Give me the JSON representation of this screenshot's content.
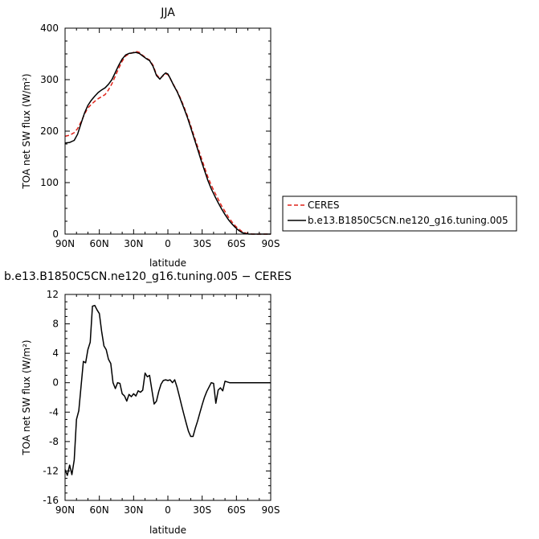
{
  "chart_data": [
    {
      "type": "line",
      "title": "JJA",
      "xlabel": "latitude",
      "ylabel": "TOA net SW flux (W/m²)",
      "xlim": [
        -90,
        90
      ],
      "ylim": [
        0,
        400
      ],
      "x_ticks": [
        {
          "value": -90,
          "label": "90N"
        },
        {
          "value": -60,
          "label": "60N"
        },
        {
          "value": -30,
          "label": "30N"
        },
        {
          "value": 0,
          "label": "0"
        },
        {
          "value": 30,
          "label": "30S"
        },
        {
          "value": 60,
          "label": "60S"
        },
        {
          "value": 90,
          "label": "90S"
        }
      ],
      "y_ticks": [
        0,
        100,
        200,
        300,
        400
      ],
      "legend_position": "right",
      "series": [
        {
          "name": "CERES",
          "color": "#e0241b",
          "dash": "dashed",
          "x": [
            -90,
            -86,
            -82,
            -79,
            -76,
            -73,
            -70,
            -67,
            -64,
            -61,
            -58,
            -55,
            -52,
            -49,
            -46,
            -43,
            -40,
            -37,
            -34,
            -31,
            -28,
            -25,
            -22,
            -19,
            -16,
            -13,
            -10,
            -7,
            -4,
            -2,
            0,
            2,
            5,
            8,
            11,
            14,
            17,
            20,
            23,
            26,
            29,
            32,
            35,
            38,
            41,
            44,
            47,
            50,
            53,
            56,
            59,
            62,
            65,
            68,
            71,
            74,
            77,
            80,
            84,
            88,
            90
          ],
          "y": [
            190,
            192,
            197,
            205,
            218,
            233,
            245,
            252,
            258,
            263,
            267,
            271,
            280,
            292,
            307,
            322,
            336,
            346,
            350,
            352,
            355,
            353,
            347,
            342,
            338,
            328,
            310,
            302,
            308,
            311,
            310,
            302,
            290,
            278,
            264,
            248,
            230,
            211,
            190,
            170,
            150,
            130,
            111,
            95,
            81,
            68,
            55,
            44,
            33,
            24,
            16,
            10,
            5,
            2,
            1,
            0,
            0,
            0,
            0,
            0,
            0
          ]
        },
        {
          "name": "b.e13.B1850C5CN.ne120_g16.tuning.005",
          "color": "#000000",
          "dash": "solid",
          "x": [
            -90,
            -86,
            -82,
            -79,
            -76,
            -73,
            -70,
            -67,
            -64,
            -61,
            -58,
            -55,
            -52,
            -49,
            -46,
            -43,
            -40,
            -37,
            -34,
            -31,
            -28,
            -25,
            -22,
            -19,
            -16,
            -13,
            -10,
            -7,
            -4,
            -2,
            0,
            2,
            5,
            8,
            11,
            14,
            17,
            20,
            23,
            26,
            29,
            32,
            35,
            38,
            41,
            44,
            47,
            50,
            53,
            56,
            59,
            62,
            65,
            68,
            71,
            74,
            77,
            80,
            84,
            88,
            90
          ],
          "y": [
            177,
            178,
            182,
            194,
            215,
            235,
            250,
            260,
            268,
            275,
            280,
            284,
            291,
            300,
            314,
            328,
            340,
            348,
            351,
            352,
            353,
            351,
            346,
            341,
            337,
            326,
            308,
            301,
            309,
            313,
            311,
            303,
            289,
            277,
            262,
            245,
            227,
            207,
            186,
            165,
            144,
            124,
            104,
            88,
            74,
            61,
            49,
            38,
            28,
            20,
            13,
            7,
            3,
            1,
            0,
            0,
            0,
            0,
            0,
            0,
            0
          ]
        }
      ]
    },
    {
      "type": "line",
      "title": "b.e13.B1850C5CN.ne120_g16.tuning.005 − CERES",
      "xlabel": "latitude",
      "ylabel": "TOA net SW flux (W/m²)",
      "xlim": [
        -90,
        90
      ],
      "ylim": [
        -16,
        12
      ],
      "x_ticks": [
        {
          "value": -90,
          "label": "90N"
        },
        {
          "value": -60,
          "label": "60N"
        },
        {
          "value": -30,
          "label": "30N"
        },
        {
          "value": 0,
          "label": "0"
        },
        {
          "value": 30,
          "label": "30S"
        },
        {
          "value": 60,
          "label": "60S"
        },
        {
          "value": 90,
          "label": "90S"
        }
      ],
      "y_ticks": [
        12,
        8,
        4,
        0,
        -4,
        -8,
        -12,
        -16
      ],
      "series": [
        {
          "color": "#000000",
          "dash": "solid",
          "x": [
            -90,
            -88,
            -86,
            -84,
            -82,
            -80,
            -78,
            -76,
            -74,
            -72,
            -70,
            -68,
            -66,
            -64,
            -62,
            -60,
            -58,
            -56,
            -54,
            -52,
            -50,
            -48,
            -46,
            -44,
            -42,
            -40,
            -38,
            -36,
            -34,
            -32,
            -30,
            -28,
            -26,
            -24,
            -22,
            -20,
            -18,
            -16,
            -14,
            -12,
            -10,
            -8,
            -6,
            -4,
            -2,
            0,
            2,
            4,
            6,
            8,
            10,
            12,
            14,
            16,
            18,
            20,
            22,
            24,
            26,
            28,
            30,
            32,
            34,
            36,
            38,
            40,
            42,
            44,
            46,
            48,
            50,
            52,
            54,
            56,
            58,
            60,
            62,
            64,
            66,
            68,
            70,
            72,
            74,
            76,
            78,
            80,
            82,
            84,
            86,
            88,
            90
          ],
          "y": [
            -11.8,
            -12.6,
            -11.2,
            -12.5,
            -10.5,
            -5,
            -3.8,
            -0.5,
            2.9,
            2.7,
            4.5,
            5.5,
            10.4,
            10.5,
            9.9,
            9.4,
            7,
            5,
            4.5,
            3.2,
            2.6,
            0,
            -0.8,
            0,
            -0.1,
            -1.5,
            -1.8,
            -2.5,
            -1.6,
            -1.9,
            -1.5,
            -1.8,
            -1.1,
            -1.3,
            -1,
            1.3,
            0.8,
            1,
            -1,
            -2.9,
            -2.5,
            -1.2,
            -0.2,
            0.3,
            0.4,
            0.3,
            0.4,
            0,
            0.4,
            -0.6,
            -1.8,
            -3.1,
            -4.3,
            -5.5,
            -6.6,
            -7.3,
            -7.3,
            -6.2,
            -5.2,
            -4.1,
            -3,
            -2,
            -1.2,
            -0.6,
            0,
            -0.1,
            -2.8,
            -1,
            -0.7,
            -1.1,
            0.2,
            0.1,
            0,
            0,
            0,
            0,
            0,
            0,
            0,
            0,
            0,
            0,
            0,
            0,
            0,
            0,
            0,
            0,
            0,
            0,
            0
          ]
        }
      ]
    }
  ]
}
